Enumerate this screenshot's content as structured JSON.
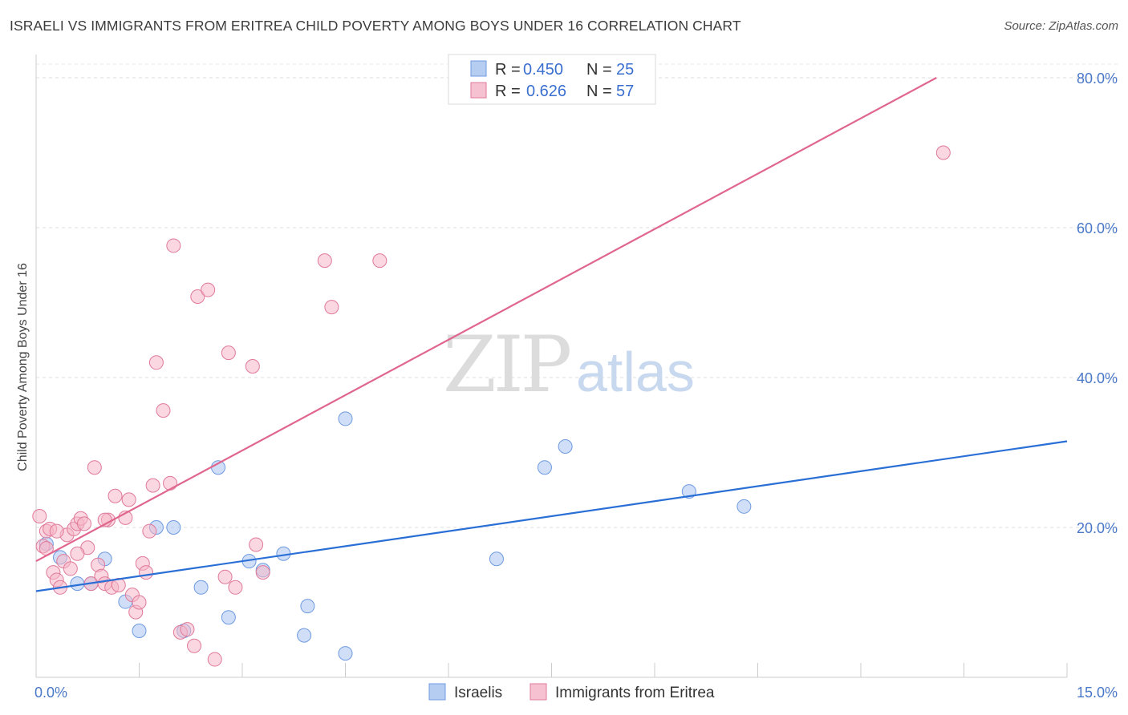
{
  "header": {
    "title": "ISRAELI VS IMMIGRANTS FROM ERITREA CHILD POVERTY AMONG BOYS UNDER 16 CORRELATION CHART",
    "source": "Source: ZipAtlas.com"
  },
  "watermark": {
    "zip": "ZIP",
    "atlas": "atlas"
  },
  "legend": {
    "rows": [
      {
        "r_label": "R =",
        "r_value": "0.450",
        "n_label": "N =",
        "n_value": "25",
        "color": "#a9c4f0"
      },
      {
        "r_label": "R =",
        "r_value": "0.626",
        "n_label": "N =",
        "n_value": "57",
        "color": "#f5b7c9"
      }
    ]
  },
  "bottom_legend": {
    "items": [
      "Israelis",
      "Immigrants from Eritrea"
    ]
  },
  "chart_data": {
    "type": "scatter",
    "title": "ISRAELI VS IMMIGRANTS FROM ERITREA CHILD POVERTY AMONG BOYS UNDER 16 CORRELATION CHART",
    "xlabel": "",
    "ylabel": "Child Poverty Among Boys Under 16",
    "xlim": [
      0,
      15
    ],
    "ylim": [
      0,
      80
    ],
    "y_ticks": [
      {
        "value": 20,
        "label": "20.0%"
      },
      {
        "value": 40,
        "label": "40.0%"
      },
      {
        "value": 60,
        "label": "60.0%"
      },
      {
        "value": 80,
        "label": "80.0%"
      }
    ],
    "x_tick_labels": [
      {
        "value": 0,
        "label": "0.0%"
      },
      {
        "value": 15,
        "label": "15.0%"
      }
    ],
    "x_minor_ticks": [
      0,
      1.5,
      3,
      4.5,
      6,
      7.5,
      9,
      10.5,
      12,
      13.5,
      15
    ],
    "grid": true,
    "legend_position": "top-center",
    "series": [
      {
        "name": "Israelis",
        "color": "#a9c4f0",
        "stroke": "#6e9ae0",
        "trend_color": "#2a6fd6",
        "trend": {
          "x0": 0,
          "y0": 11.5,
          "x1": 15,
          "y1": 31.5
        },
        "points": [
          [
            0.15,
            17.8
          ],
          [
            0.35,
            16.0
          ],
          [
            0.6,
            12.5
          ],
          [
            0.8,
            12.5
          ],
          [
            1.0,
            15.8
          ],
          [
            1.3,
            10.1
          ],
          [
            1.5,
            6.2
          ],
          [
            1.75,
            20.0
          ],
          [
            2.0,
            20.0
          ],
          [
            2.15,
            6.2
          ],
          [
            2.4,
            12.0
          ],
          [
            2.65,
            28.0
          ],
          [
            2.8,
            8.0
          ],
          [
            3.1,
            15.5
          ],
          [
            3.3,
            14.3
          ],
          [
            3.6,
            16.5
          ],
          [
            3.9,
            5.6
          ],
          [
            3.95,
            9.5
          ],
          [
            4.5,
            3.2
          ],
          [
            4.5,
            34.5
          ],
          [
            6.7,
            15.8
          ],
          [
            7.4,
            28.0
          ],
          [
            7.7,
            30.8
          ],
          [
            9.5,
            24.8
          ],
          [
            10.3,
            22.8
          ]
        ]
      },
      {
        "name": "Immigrants from Eritrea",
        "color": "#f5b7c9",
        "stroke": "#e07a9a",
        "trend_color": "#e0668e",
        "trend": {
          "x0": 0,
          "y0": 15.5,
          "x1": 13.1,
          "y1": 80
        },
        "points": [
          [
            0.05,
            21.5
          ],
          [
            0.1,
            17.5
          ],
          [
            0.15,
            19.5
          ],
          [
            0.2,
            19.8
          ],
          [
            0.25,
            14.0
          ],
          [
            0.3,
            13.0
          ],
          [
            0.35,
            12.0
          ],
          [
            0.4,
            15.5
          ],
          [
            0.45,
            19.0
          ],
          [
            0.5,
            14.5
          ],
          [
            0.55,
            19.8
          ],
          [
            0.6,
            20.5
          ],
          [
            0.65,
            21.2
          ],
          [
            0.7,
            20.5
          ],
          [
            0.75,
            17.3
          ],
          [
            0.8,
            12.5
          ],
          [
            0.85,
            28.0
          ],
          [
            0.9,
            15.0
          ],
          [
            0.95,
            13.5
          ],
          [
            1.0,
            12.5
          ],
          [
            1.05,
            21.0
          ],
          [
            1.1,
            12.0
          ],
          [
            1.15,
            24.2
          ],
          [
            1.2,
            12.3
          ],
          [
            1.3,
            21.3
          ],
          [
            1.35,
            23.7
          ],
          [
            1.4,
            11.0
          ],
          [
            1.45,
            8.7
          ],
          [
            1.5,
            10.0
          ],
          [
            1.55,
            15.2
          ],
          [
            1.6,
            14.0
          ],
          [
            1.65,
            19.5
          ],
          [
            1.7,
            25.6
          ],
          [
            1.75,
            42.0
          ],
          [
            1.85,
            35.6
          ],
          [
            1.95,
            25.9
          ],
          [
            2.0,
            57.6
          ],
          [
            2.1,
            6.0
          ],
          [
            2.2,
            6.4
          ],
          [
            2.3,
            4.2
          ],
          [
            2.35,
            50.8
          ],
          [
            2.5,
            51.7
          ],
          [
            2.6,
            2.4
          ],
          [
            2.75,
            13.4
          ],
          [
            2.8,
            43.3
          ],
          [
            2.9,
            12.0
          ],
          [
            3.15,
            41.5
          ],
          [
            3.2,
            17.7
          ],
          [
            3.3,
            14.0
          ],
          [
            4.2,
            55.6
          ],
          [
            4.3,
            49.4
          ],
          [
            5.0,
            55.6
          ],
          [
            13.2,
            70.0
          ],
          [
            0.6,
            16.5
          ],
          [
            1.0,
            21.0
          ],
          [
            0.3,
            19.5
          ],
          [
            0.15,
            17.2
          ]
        ]
      }
    ]
  }
}
